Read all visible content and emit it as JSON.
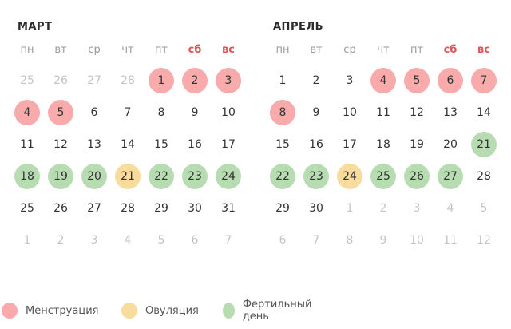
{
  "weekdays": [
    "пн",
    "вт",
    "ср",
    "чт",
    "пт",
    "сб",
    "вс"
  ],
  "weekend_color": "#e05555",
  "colors": {
    "menstruation": "#f9aaaa",
    "ovulation": "#f8dc9e",
    "fertile": "#b8dcb2"
  },
  "months": [
    {
      "title": "МАРТ",
      "weeks": [
        [
          {
            "d": "25",
            "t": "muted"
          },
          {
            "d": "26",
            "t": "muted"
          },
          {
            "d": "27",
            "t": "muted"
          },
          {
            "d": "28",
            "t": "muted"
          },
          {
            "d": "1",
            "t": "m"
          },
          {
            "d": "2",
            "t": "m"
          },
          {
            "d": "3",
            "t": "m"
          }
        ],
        [
          {
            "d": "4",
            "t": "m"
          },
          {
            "d": "5",
            "t": "m"
          },
          {
            "d": "6",
            "t": ""
          },
          {
            "d": "7",
            "t": ""
          },
          {
            "d": "8",
            "t": ""
          },
          {
            "d": "9",
            "t": ""
          },
          {
            "d": "10",
            "t": ""
          }
        ],
        [
          {
            "d": "11",
            "t": ""
          },
          {
            "d": "12",
            "t": ""
          },
          {
            "d": "13",
            "t": ""
          },
          {
            "d": "14",
            "t": ""
          },
          {
            "d": "15",
            "t": ""
          },
          {
            "d": "16",
            "t": ""
          },
          {
            "d": "17",
            "t": ""
          }
        ],
        [
          {
            "d": "18",
            "t": "f"
          },
          {
            "d": "19",
            "t": "f"
          },
          {
            "d": "20",
            "t": "f"
          },
          {
            "d": "21",
            "t": "o"
          },
          {
            "d": "22",
            "t": "f"
          },
          {
            "d": "23",
            "t": "f"
          },
          {
            "d": "24",
            "t": "f"
          }
        ],
        [
          {
            "d": "25",
            "t": ""
          },
          {
            "d": "26",
            "t": ""
          },
          {
            "d": "27",
            "t": ""
          },
          {
            "d": "28",
            "t": ""
          },
          {
            "d": "29",
            "t": ""
          },
          {
            "d": "30",
            "t": ""
          },
          {
            "d": "31",
            "t": ""
          }
        ],
        [
          {
            "d": "1",
            "t": "muted"
          },
          {
            "d": "2",
            "t": "muted"
          },
          {
            "d": "3",
            "t": "muted"
          },
          {
            "d": "4",
            "t": "muted"
          },
          {
            "d": "5",
            "t": "muted"
          },
          {
            "d": "6",
            "t": "muted"
          },
          {
            "d": "7",
            "t": "muted"
          }
        ]
      ]
    },
    {
      "title": "АПРЕЛЬ",
      "weeks": [
        [
          {
            "d": "1",
            "t": ""
          },
          {
            "d": "2",
            "t": ""
          },
          {
            "d": "3",
            "t": ""
          },
          {
            "d": "4",
            "t": "m"
          },
          {
            "d": "5",
            "t": "m"
          },
          {
            "d": "6",
            "t": "m"
          },
          {
            "d": "7",
            "t": "m"
          }
        ],
        [
          {
            "d": "8",
            "t": "m"
          },
          {
            "d": "9",
            "t": ""
          },
          {
            "d": "10",
            "t": ""
          },
          {
            "d": "11",
            "t": ""
          },
          {
            "d": "12",
            "t": ""
          },
          {
            "d": "13",
            "t": ""
          },
          {
            "d": "14",
            "t": ""
          }
        ],
        [
          {
            "d": "15",
            "t": ""
          },
          {
            "d": "16",
            "t": ""
          },
          {
            "d": "17",
            "t": ""
          },
          {
            "d": "18",
            "t": ""
          },
          {
            "d": "19",
            "t": ""
          },
          {
            "d": "20",
            "t": ""
          },
          {
            "d": "21",
            "t": "f"
          }
        ],
        [
          {
            "d": "22",
            "t": "f"
          },
          {
            "d": "23",
            "t": "f"
          },
          {
            "d": "24",
            "t": "o"
          },
          {
            "d": "25",
            "t": "f"
          },
          {
            "d": "26",
            "t": "f"
          },
          {
            "d": "27",
            "t": "f"
          },
          {
            "d": "28",
            "t": ""
          }
        ],
        [
          {
            "d": "29",
            "t": ""
          },
          {
            "d": "30",
            "t": ""
          },
          {
            "d": "1",
            "t": "muted"
          },
          {
            "d": "2",
            "t": "muted"
          },
          {
            "d": "3",
            "t": "muted"
          },
          {
            "d": "4",
            "t": "muted"
          },
          {
            "d": "5",
            "t": "muted"
          }
        ],
        [
          {
            "d": "6",
            "t": "muted"
          },
          {
            "d": "7",
            "t": "muted"
          },
          {
            "d": "8",
            "t": "muted"
          },
          {
            "d": "9",
            "t": "muted"
          },
          {
            "d": "10",
            "t": "muted"
          },
          {
            "d": "11",
            "t": "muted"
          },
          {
            "d": "12",
            "t": "muted"
          }
        ]
      ]
    }
  ],
  "legend": [
    {
      "key": "menstruation",
      "label": "Менструация",
      "class": "m"
    },
    {
      "key": "ovulation",
      "label": "Овуляция",
      "class": "o"
    },
    {
      "key": "fertile",
      "label": "Фертильный день",
      "class": "f"
    }
  ]
}
